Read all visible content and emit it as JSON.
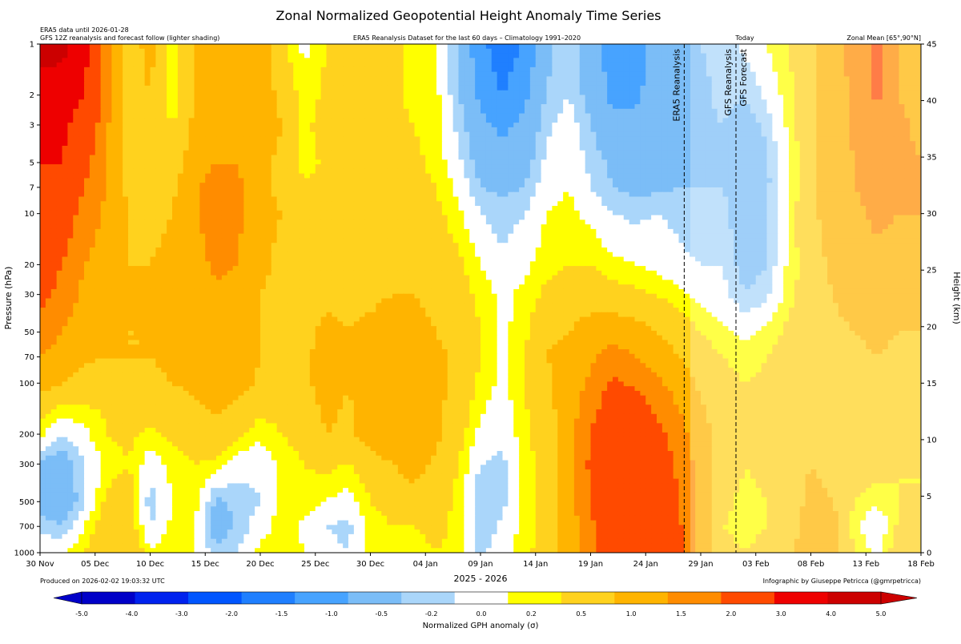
{
  "chart_data": {
    "type": "heatmap",
    "title": "Zonal Normalized Geopotential Height Anomaly Time Series",
    "subtitle": "ERA5 Reanalysis Dataset for the last 60 days – Climatology 1991–2020",
    "note_left_1": "ERA5 data until 2026-01-28",
    "note_left_2": "GFS 12Z reanalysis and forecast follow (lighter shading)",
    "note_right": "Zonal Mean [65°,90°N]",
    "today_label": "Today",
    "produced": "Produced on 2026-02-02 19:03:32 UTC",
    "credit": "Infographic by Giuseppe Petricca (@gmrpetricca)",
    "xlabel": "2025 - 2026",
    "ylabel": "Pressure (hPa)",
    "y2label": "Height (km)",
    "colorbar_label": "Normalized GPH anomaly (σ)",
    "x_ticks": [
      "30 Nov",
      "05 Dec",
      "10 Dec",
      "15 Dec",
      "20 Dec",
      "25 Dec",
      "30 Dec",
      "04 Jan",
      "09 Jan",
      "14 Jan",
      "19 Jan",
      "24 Jan",
      "29 Jan",
      "03 Feb",
      "08 Feb",
      "13 Feb",
      "18 Feb"
    ],
    "x_range_days": [
      0,
      80
    ],
    "y_ticks": [
      1,
      2,
      3,
      5,
      7,
      10,
      20,
      30,
      50,
      70,
      100,
      200,
      300,
      500,
      700,
      1000
    ],
    "y_tick_labels": [
      "1",
      "2",
      "3",
      "5",
      "7",
      "10",
      "20",
      "30",
      "50",
      "70",
      "100",
      "200",
      "300",
      "500",
      "700",
      "1000"
    ],
    "y_scale": "log",
    "ylim": [
      1000,
      1
    ],
    "y2_ticks": [
      0,
      5,
      10,
      15,
      20,
      25,
      30,
      35,
      40,
      45
    ],
    "y2_tick_labels": [
      "0",
      "5",
      "10",
      "15",
      "20",
      "25",
      "30",
      "35",
      "40",
      "45"
    ],
    "colorbar_ticks": [
      "-5.0",
      "-4.0",
      "-3.0",
      "-2.0",
      "-1.5",
      "-1.0",
      "-0.5",
      "-0.2",
      "0.0",
      "0.2",
      "0.5",
      "1.0",
      "1.5",
      "2.0",
      "3.0",
      "4.0",
      "5.0"
    ],
    "levels": [
      -5.0,
      -4.0,
      -3.0,
      -2.0,
      -1.5,
      -1.0,
      -0.5,
      -0.2,
      0.2,
      0.5,
      1.0,
      1.5,
      2.0,
      3.0,
      4.0,
      5.0
    ],
    "level_colors": [
      "#0000c8",
      "#0022ee",
      "#0055ff",
      "#1f7fff",
      "#47a3ff",
      "#7bbdf7",
      "#aad6fa",
      "#ffffff",
      "#ffff00",
      "#ffd21e",
      "#ffb400",
      "#ff8c00",
      "#ff4a00",
      "#ee0000",
      "#cc0000"
    ],
    "vertical_lines": [
      {
        "label": "ERA5 Reanalysis",
        "day": 58.5
      },
      {
        "label": "GFS Reanalysis",
        "day": 63.2
      },
      {
        "label": "GFS Forecast",
        "day": 63.2
      }
    ],
    "grid": false,
    "field_description": "Approximate anomaly field: strong positive (red) in the upper stratosphere in early December, negative (blue) stratospheric anomalies from ~03 Jan to ~05 Feb, strong positive tropospheric anomalies (red) from ~14 Jan to ~29 Jan, positive anomalies returning at all levels after ~08 Feb.",
    "x_days": [
      0,
      2,
      4,
      6,
      8,
      10,
      12,
      14,
      16,
      18,
      20,
      22,
      24,
      26,
      28,
      30,
      32,
      34,
      36,
      38,
      40,
      42,
      44,
      46,
      48,
      50,
      52,
      54,
      56,
      58,
      60,
      62,
      64,
      66,
      68,
      70,
      72,
      74,
      76,
      78,
      80
    ],
    "y_levels_hpa": [
      1,
      2,
      3,
      5,
      7,
      10,
      20,
      30,
      50,
      70,
      100,
      200,
      300,
      500,
      700,
      1000
    ],
    "values": [
      [
        4.2,
        4.4,
        3.3,
        1.8,
        0.7,
        1.2,
        0.3,
        1.0,
        1.1,
        1.3,
        1.3,
        0.6,
        0.1,
        0.5,
        0.8,
        0.9,
        0.6,
        0.4,
        0.3,
        -0.6,
        -1.3,
        -1.9,
        -1.4,
        -0.6,
        -0.3,
        -0.8,
        -1.2,
        -1.2,
        -0.8,
        -0.6,
        -0.5,
        -0.4,
        -0.1,
        0.2,
        0.5,
        0.9,
        1.4,
        1.6,
        2.2,
        1.4,
        1.2
      ],
      [
        3.8,
        3.4,
        3.0,
        1.7,
        0.7,
        1.0,
        0.2,
        1.0,
        1.2,
        1.3,
        1.2,
        0.9,
        0.3,
        0.6,
        0.8,
        0.8,
        0.6,
        0.4,
        0.3,
        -0.5,
        -1.1,
        -1.5,
        -1.1,
        -0.5,
        -0.2,
        -0.7,
        -1.1,
        -1.1,
        -0.8,
        -0.6,
        -0.6,
        -0.4,
        -0.5,
        -0.1,
        0.4,
        0.9,
        1.3,
        1.6,
        2.1,
        1.5,
        1.3
      ],
      [
        3.4,
        3.2,
        2.6,
        1.6,
        0.8,
        0.9,
        0.5,
        1.1,
        1.3,
        1.4,
        1.2,
        1.0,
        0.4,
        0.7,
        0.8,
        0.7,
        0.6,
        0.5,
        0.3,
        -0.3,
        -0.9,
        -1.1,
        -0.9,
        -0.3,
        0.0,
        -0.5,
        -0.9,
        -0.9,
        -0.8,
        -0.6,
        -0.6,
        -0.5,
        -0.7,
        -0.4,
        0.3,
        0.9,
        1.3,
        1.6,
        1.9,
        1.6,
        1.4
      ],
      [
        3.0,
        3.0,
        2.2,
        1.5,
        0.9,
        0.9,
        0.7,
        1.3,
        1.5,
        1.5,
        1.1,
        0.9,
        0.3,
        0.6,
        0.8,
        0.8,
        0.7,
        0.6,
        0.4,
        -0.1,
        -0.7,
        -0.8,
        -0.7,
        -0.1,
        0.1,
        -0.3,
        -0.6,
        -0.7,
        -0.7,
        -0.6,
        -0.6,
        -0.5,
        -0.8,
        -0.6,
        0.2,
        0.9,
        1.2,
        1.5,
        1.8,
        1.6,
        1.5
      ],
      [
        2.8,
        2.7,
        2.0,
        1.5,
        0.9,
        0.9,
        0.9,
        1.4,
        1.7,
        1.6,
        1.1,
        0.9,
        0.6,
        0.7,
        0.8,
        0.8,
        0.8,
        0.6,
        0.5,
        0.1,
        -0.5,
        -0.6,
        -0.5,
        0.0,
        0.2,
        -0.2,
        -0.5,
        -0.6,
        -0.6,
        -0.5,
        -0.5,
        -0.5,
        -0.8,
        -0.6,
        0.2,
        0.9,
        1.2,
        1.5,
        1.7,
        1.6,
        1.5
      ],
      [
        2.6,
        2.4,
        1.8,
        1.4,
        1.0,
        0.9,
        1.0,
        1.4,
        1.8,
        1.6,
        1.1,
        1.0,
        0.8,
        0.8,
        0.8,
        0.8,
        0.9,
        0.7,
        0.6,
        0.3,
        -0.2,
        -0.4,
        -0.2,
        0.2,
        0.3,
        0.1,
        -0.2,
        -0.3,
        -0.2,
        -0.3,
        -0.5,
        -0.4,
        -0.8,
        -0.6,
        0.3,
        0.9,
        1.2,
        1.4,
        1.6,
        1.5,
        1.5
      ],
      [
        2.4,
        2.0,
        1.5,
        1.3,
        1.0,
        1.0,
        1.1,
        1.3,
        1.6,
        1.5,
        1.1,
        0.9,
        0.8,
        0.9,
        0.9,
        0.8,
        0.9,
        0.8,
        0.7,
        0.6,
        0.2,
        -0.1,
        0.1,
        0.4,
        0.5,
        0.5,
        0.3,
        0.2,
        0.1,
        -0.1,
        -0.2,
        -0.2,
        -0.7,
        -0.5,
        0.3,
        0.8,
        1.1,
        1.3,
        1.4,
        1.3,
        1.3
      ],
      [
        2.2,
        1.8,
        1.4,
        1.2,
        1.0,
        1.0,
        1.1,
        1.2,
        1.4,
        1.4,
        1.0,
        0.9,
        0.8,
        0.9,
        0.9,
        0.9,
        1.0,
        1.0,
        0.8,
        0.7,
        0.4,
        0.1,
        0.3,
        0.6,
        0.7,
        0.8,
        0.7,
        0.6,
        0.5,
        0.3,
        0.1,
        -0.1,
        -0.5,
        -0.3,
        0.4,
        0.7,
        1.0,
        1.2,
        1.2,
        1.2,
        1.2
      ],
      [
        1.8,
        1.5,
        1.2,
        1.1,
        1.0,
        1.0,
        1.1,
        1.1,
        1.3,
        1.3,
        1.0,
        0.9,
        0.9,
        1.1,
        1.0,
        1.1,
        1.3,
        1.2,
        1.0,
        0.8,
        0.5,
        0.1,
        0.4,
        0.9,
        1.0,
        1.2,
        1.3,
        1.2,
        1.0,
        0.8,
        0.5,
        0.3,
        0.1,
        0.3,
        0.6,
        0.7,
        0.9,
        1.0,
        1.1,
        1.0,
        1.0
      ],
      [
        1.5,
        1.3,
        1.1,
        1.0,
        1.0,
        1.0,
        1.1,
        1.1,
        1.2,
        1.3,
        1.0,
        0.9,
        0.9,
        1.2,
        1.1,
        1.2,
        1.4,
        1.4,
        1.1,
        0.9,
        0.5,
        0.1,
        0.5,
        1.0,
        1.2,
        1.4,
        1.7,
        1.5,
        1.3,
        1.0,
        0.7,
        0.5,
        0.3,
        0.5,
        0.7,
        0.8,
        0.8,
        0.9,
        1.0,
        0.9,
        0.9
      ],
      [
        1.2,
        1.0,
        0.8,
        0.6,
        0.8,
        0.9,
        1.0,
        1.1,
        1.2,
        1.2,
        0.9,
        0.8,
        0.9,
        1.2,
        1.0,
        1.3,
        1.5,
        1.5,
        1.1,
        0.9,
        0.4,
        0.1,
        0.5,
        0.9,
        1.2,
        1.6,
        2.1,
        1.9,
        1.6,
        1.3,
        0.9,
        0.7,
        0.5,
        0.6,
        0.7,
        0.8,
        0.8,
        0.9,
        0.9,
        0.8,
        0.8
      ],
      [
        0.3,
        -0.2,
        0.1,
        0.5,
        0.6,
        0.4,
        0.6,
        0.8,
        0.9,
        0.6,
        0.3,
        0.5,
        0.7,
        1.0,
        0.9,
        1.2,
        1.4,
        1.5,
        1.1,
        0.7,
        0.1,
        -0.1,
        0.4,
        0.8,
        1.3,
        2.0,
        2.6,
        2.8,
        2.2,
        1.7,
        1.2,
        0.8,
        0.5,
        0.6,
        0.7,
        0.8,
        0.8,
        0.9,
        0.8,
        0.6,
        0.6
      ],
      [
        -0.6,
        -0.8,
        -0.2,
        0.3,
        0.5,
        0.0,
        0.3,
        0.5,
        0.4,
        0.0,
        -0.1,
        0.3,
        0.5,
        0.6,
        0.5,
        0.8,
        1.0,
        1.2,
        0.9,
        0.5,
        -0.2,
        -0.3,
        0.3,
        0.7,
        1.4,
        2.1,
        2.7,
        2.9,
        2.4,
        1.9,
        1.3,
        0.8,
        0.5,
        0.6,
        0.8,
        1.0,
        0.9,
        0.8,
        0.7,
        0.5,
        0.5
      ],
      [
        -0.7,
        -0.9,
        -0.3,
        0.6,
        0.8,
        -0.4,
        0.2,
        0.4,
        -0.6,
        -0.4,
        -0.2,
        0.3,
        0.4,
        0.2,
        0.0,
        0.5,
        0.7,
        0.8,
        0.7,
        0.4,
        -0.5,
        -0.3,
        0.3,
        0.7,
        1.3,
        2.0,
        2.6,
        2.8,
        2.6,
        2.0,
        1.3,
        0.6,
        0.4,
        0.5,
        0.8,
        1.1,
        1.0,
        0.5,
        0.3,
        0.5,
        0.5
      ],
      [
        -0.3,
        -0.5,
        0.2,
        0.8,
        0.9,
        -0.2,
        0.3,
        0.2,
        -0.8,
        -0.4,
        0.0,
        0.4,
        0.1,
        -0.2,
        -0.3,
        0.3,
        0.5,
        0.5,
        0.6,
        0.4,
        -0.5,
        -0.1,
        0.3,
        0.7,
        1.2,
        1.9,
        2.5,
        2.7,
        2.7,
        2.1,
        1.3,
        0.5,
        0.4,
        0.5,
        0.8,
        1.2,
        1.2,
        0.3,
        -0.2,
        0.6,
        0.6
      ],
      [
        0.2,
        0.1,
        0.5,
        0.9,
        1.0,
        0.3,
        0.4,
        0.2,
        -0.4,
        -0.2,
        0.3,
        0.5,
        0.2,
        -0.1,
        -0.2,
        0.3,
        0.4,
        0.4,
        0.5,
        0.4,
        -0.3,
        0.1,
        0.4,
        0.7,
        1.2,
        1.8,
        2.4,
        2.6,
        2.7,
        2.2,
        1.4,
        0.6,
        0.5,
        0.6,
        0.9,
        1.3,
        1.3,
        0.5,
        0.1,
        0.8,
        0.8
      ]
    ]
  }
}
